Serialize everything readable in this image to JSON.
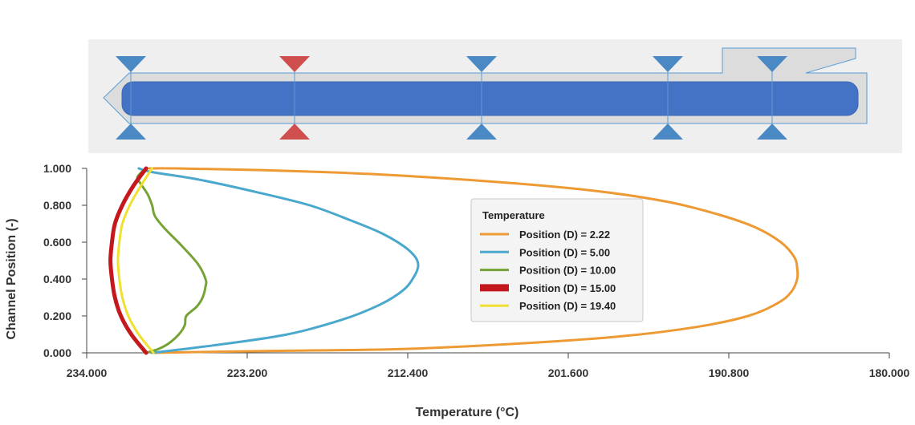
{
  "channel": {
    "colors": {
      "panel": "#efefef",
      "body": "#dcdcdc",
      "outline": "#5a9bd5",
      "bar": "#4472c4",
      "marker": "#4a89c3",
      "marker_active": "#cf4f4f"
    },
    "sensor_columns": [
      {
        "label": "",
        "active": false
      },
      {
        "label": "",
        "active": true
      },
      {
        "label": "",
        "active": false
      },
      {
        "label": "",
        "active": false
      },
      {
        "label": "",
        "active": false
      }
    ]
  },
  "chart_data": {
    "type": "line",
    "title": "",
    "xlabel": "Temperature (°C)",
    "ylabel": "Channel Position (-)",
    "xlim": [
      234.0,
      180.0
    ],
    "x_reversed": true,
    "ylim": [
      0.0,
      1.0
    ],
    "x_ticks": [
      "234.000",
      "223.200",
      "212.400",
      "201.600",
      "190.800",
      "180.000"
    ],
    "y_ticks": [
      "0.000",
      "0.200",
      "0.400",
      "0.600",
      "0.800",
      "1.000"
    ],
    "grid": false,
    "legend_title": "Temperature",
    "legend_position": "center",
    "series": [
      {
        "name": "Position (D) = 2.22",
        "color": "#ee9a34",
        "points": [
          [
            229.6,
            0.0
          ],
          [
            222,
            0.01
          ],
          [
            213,
            0.02
          ],
          [
            205,
            0.05
          ],
          [
            198,
            0.09
          ],
          [
            193,
            0.14
          ],
          [
            189.5,
            0.2
          ],
          [
            187.5,
            0.27
          ],
          [
            186.6,
            0.33
          ],
          [
            186.2,
            0.4
          ],
          [
            186.2,
            0.46
          ],
          [
            186.4,
            0.52
          ],
          [
            187.3,
            0.6
          ],
          [
            189,
            0.68
          ],
          [
            191.5,
            0.75
          ],
          [
            195,
            0.82
          ],
          [
            200,
            0.88
          ],
          [
            207,
            0.93
          ],
          [
            215,
            0.97
          ],
          [
            222,
            0.99
          ],
          [
            228,
            1.0
          ],
          [
            229.8,
            1.0
          ]
        ]
      },
      {
        "name": "Position (D) = 5.00",
        "color": "#4aa8cd",
        "points": [
          [
            229.6,
            0.0
          ],
          [
            225.5,
            0.04
          ],
          [
            220.5,
            0.1
          ],
          [
            216.8,
            0.18
          ],
          [
            214.3,
            0.26
          ],
          [
            212.7,
            0.34
          ],
          [
            212.0,
            0.41
          ],
          [
            211.7,
            0.47
          ],
          [
            211.9,
            0.52
          ],
          [
            212.7,
            0.58
          ],
          [
            214.2,
            0.65
          ],
          [
            216.3,
            0.72
          ],
          [
            219,
            0.8
          ],
          [
            222.5,
            0.87
          ],
          [
            226.5,
            0.94
          ],
          [
            229.6,
            0.98
          ],
          [
            230.5,
            1.0
          ]
        ]
      },
      {
        "name": "Position (D) = 10.00",
        "color": "#75a335",
        "points": [
          [
            230.0,
            0.0
          ],
          [
            229.2,
            0.02
          ],
          [
            228.5,
            0.05
          ],
          [
            227.8,
            0.1
          ],
          [
            227.4,
            0.15
          ],
          [
            227.3,
            0.2
          ],
          [
            226.6,
            0.25
          ],
          [
            226.2,
            0.3
          ],
          [
            226.0,
            0.36
          ],
          [
            226.0,
            0.4
          ],
          [
            226.5,
            0.48
          ],
          [
            227.6,
            0.58
          ],
          [
            228.7,
            0.67
          ],
          [
            229.4,
            0.74
          ],
          [
            229.6,
            0.8
          ],
          [
            229.9,
            0.86
          ],
          [
            230.4,
            0.92
          ],
          [
            230.6,
            0.95
          ],
          [
            230.3,
            0.98
          ],
          [
            230.0,
            1.0
          ]
        ]
      },
      {
        "name": "Position (D) = 15.00",
        "color": "#c4181d",
        "width": 5,
        "points": [
          [
            230.0,
            0.0
          ],
          [
            231.0,
            0.1
          ],
          [
            231.7,
            0.2
          ],
          [
            232.1,
            0.3
          ],
          [
            232.3,
            0.4
          ],
          [
            232.4,
            0.5
          ],
          [
            232.3,
            0.6
          ],
          [
            232.1,
            0.7
          ],
          [
            231.6,
            0.8
          ],
          [
            230.9,
            0.9
          ],
          [
            230.0,
            1.0
          ]
        ]
      },
      {
        "name": "Position (D) = 19.40",
        "color": "#f0e030",
        "points": [
          [
            229.5,
            0.0
          ],
          [
            230.5,
            0.1
          ],
          [
            231.2,
            0.2
          ],
          [
            231.6,
            0.3
          ],
          [
            231.8,
            0.4
          ],
          [
            231.9,
            0.5
          ],
          [
            231.8,
            0.6
          ],
          [
            231.6,
            0.7
          ],
          [
            231.1,
            0.8
          ],
          [
            230.4,
            0.9
          ],
          [
            229.6,
            1.0
          ]
        ]
      }
    ]
  }
}
